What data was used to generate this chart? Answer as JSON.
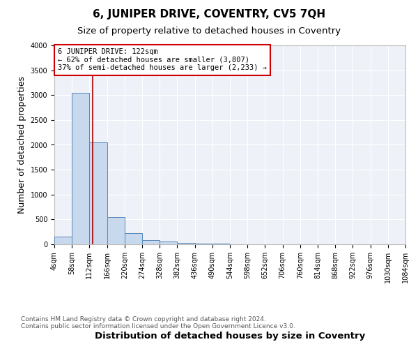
{
  "title": "6, JUNIPER DRIVE, COVENTRY, CV5 7QH",
  "subtitle": "Size of property relative to detached houses in Coventry",
  "xlabel": "Distribution of detached houses by size in Coventry",
  "ylabel": "Number of detached properties",
  "bin_edges": [
    4,
    58,
    112,
    166,
    220,
    274,
    328,
    382,
    436,
    490,
    544,
    598,
    652,
    706,
    760,
    814,
    868,
    922,
    976,
    1030,
    1084
  ],
  "bar_heights": [
    150,
    3050,
    2050,
    550,
    220,
    90,
    60,
    30,
    10,
    8,
    5,
    4,
    3,
    3,
    2,
    2,
    1,
    1,
    1,
    1
  ],
  "bar_color": "#c8d8ed",
  "bar_edgecolor": "#5588bb",
  "vline_x": 122,
  "vline_color": "#aa0000",
  "annotation_line1": "6 JUNIPER DRIVE: 122sqm",
  "annotation_line2": "← 62% of detached houses are smaller (3,807)",
  "annotation_line3": "37% of semi-detached houses are larger (2,233) →",
  "annotation_box_color": "#cc0000",
  "annotation_text_color": "#000000",
  "ylim": [
    0,
    4000
  ],
  "yticks": [
    0,
    500,
    1000,
    1500,
    2000,
    2500,
    3000,
    3500,
    4000
  ],
  "background_color": "#eef2f8",
  "grid_color": "#ffffff",
  "footer_line1": "Contains HM Land Registry data © Crown copyright and database right 2024.",
  "footer_line2": "Contains public sector information licensed under the Open Government Licence v3.0.",
  "title_fontsize": 11,
  "subtitle_fontsize": 9.5,
  "ylabel_fontsize": 9,
  "xlabel_fontsize": 9.5,
  "tick_fontsize": 7,
  "annotation_fontsize": 7.5,
  "footer_fontsize": 6.5
}
